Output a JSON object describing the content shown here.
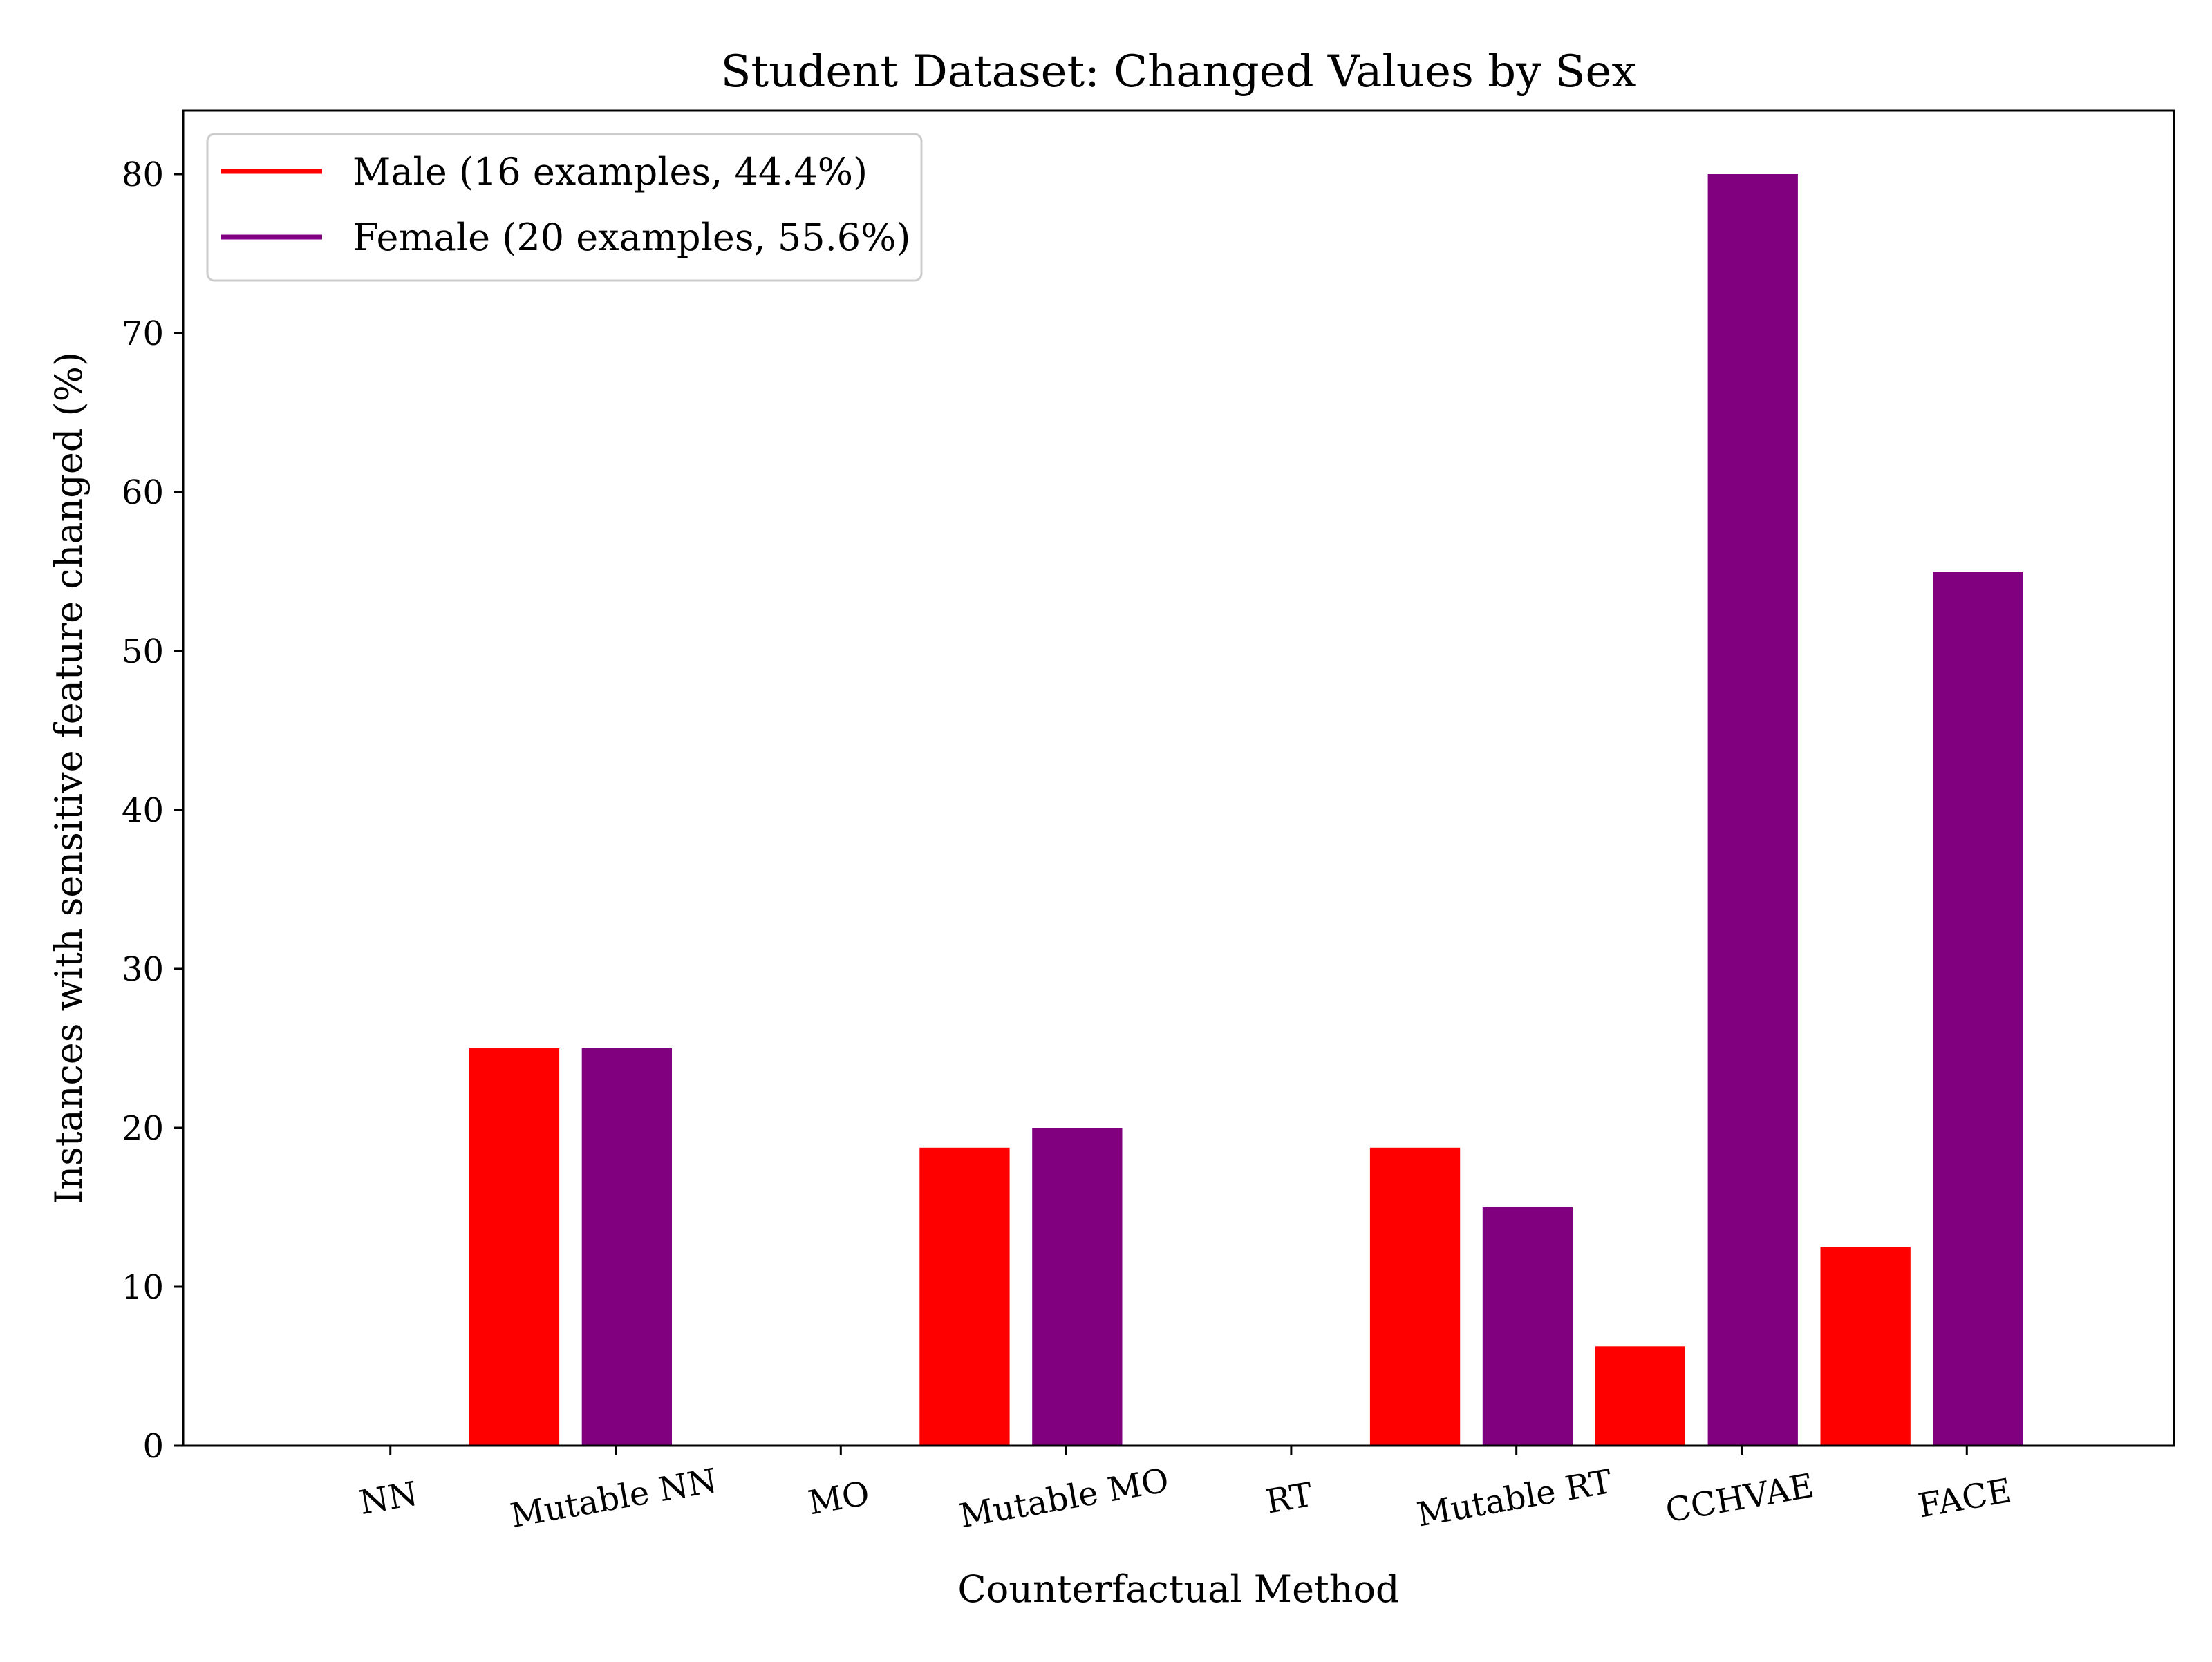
{
  "chart_data": {
    "type": "bar",
    "title": "Student Dataset: Changed Values by Sex",
    "xlabel": "Counterfactual Method",
    "ylabel": "Instances with sensitive feature changed (%)",
    "categories": [
      "NN",
      "Mutable NN",
      "MO",
      "Mutable MO",
      "RT",
      "Mutable RT",
      "CCHVAE",
      "FACE"
    ],
    "series": [
      {
        "name": "Male (16 examples, 44.4%)",
        "color": "#ff0000",
        "values": [
          0,
          25,
          0,
          18.75,
          0,
          18.75,
          6.25,
          12.5
        ]
      },
      {
        "name": "Female (20 examples, 55.6%)",
        "color": "#800080",
        "values": [
          0,
          25,
          0,
          20,
          0,
          15,
          80,
          55
        ]
      }
    ],
    "ylim": [
      0,
      84
    ],
    "yticks": [
      0,
      10,
      20,
      30,
      40,
      50,
      60,
      70,
      80
    ],
    "grid": false,
    "legend_position": "top-left"
  }
}
